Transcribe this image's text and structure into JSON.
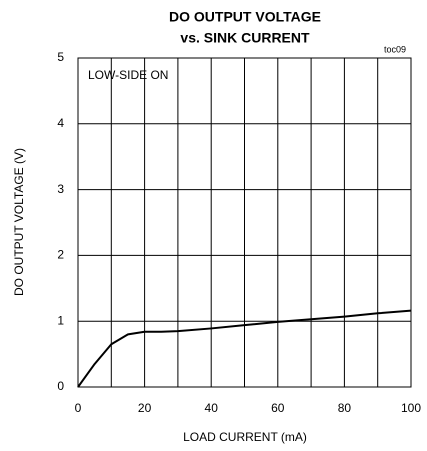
{
  "chart_data": {
    "type": "line",
    "title": [
      "DO OUTPUT VOLTAGE",
      "vs. SINK CURRENT"
    ],
    "annotations": [
      "toc09",
      "LOW-SIDE ON"
    ],
    "x_label": "LOAD CURRENT (mA)",
    "y_label": "DO OUTPUT VOLTAGE (V)",
    "x": [
      0,
      5,
      10,
      15,
      20,
      25,
      30,
      40,
      50,
      60,
      70,
      80,
      90,
      100
    ],
    "series": [
      {
        "name": null,
        "color": "#000000",
        "values": [
          0,
          0.35,
          0.65,
          0.8,
          0.84,
          0.84,
          0.85,
          0.89,
          0.94,
          0.99,
          1.03,
          1.07,
          1.12,
          1.16
        ]
      }
    ],
    "xlim": [
      0,
      100
    ],
    "xticks": [
      0,
      20,
      40,
      60,
      80,
      100
    ],
    "xgrid_ticks": [
      10,
      30,
      50,
      70,
      90
    ],
    "ylim": [
      0,
      5
    ],
    "yticks": [
      0,
      1,
      2,
      3,
      4,
      5
    ],
    "grid": true
  }
}
